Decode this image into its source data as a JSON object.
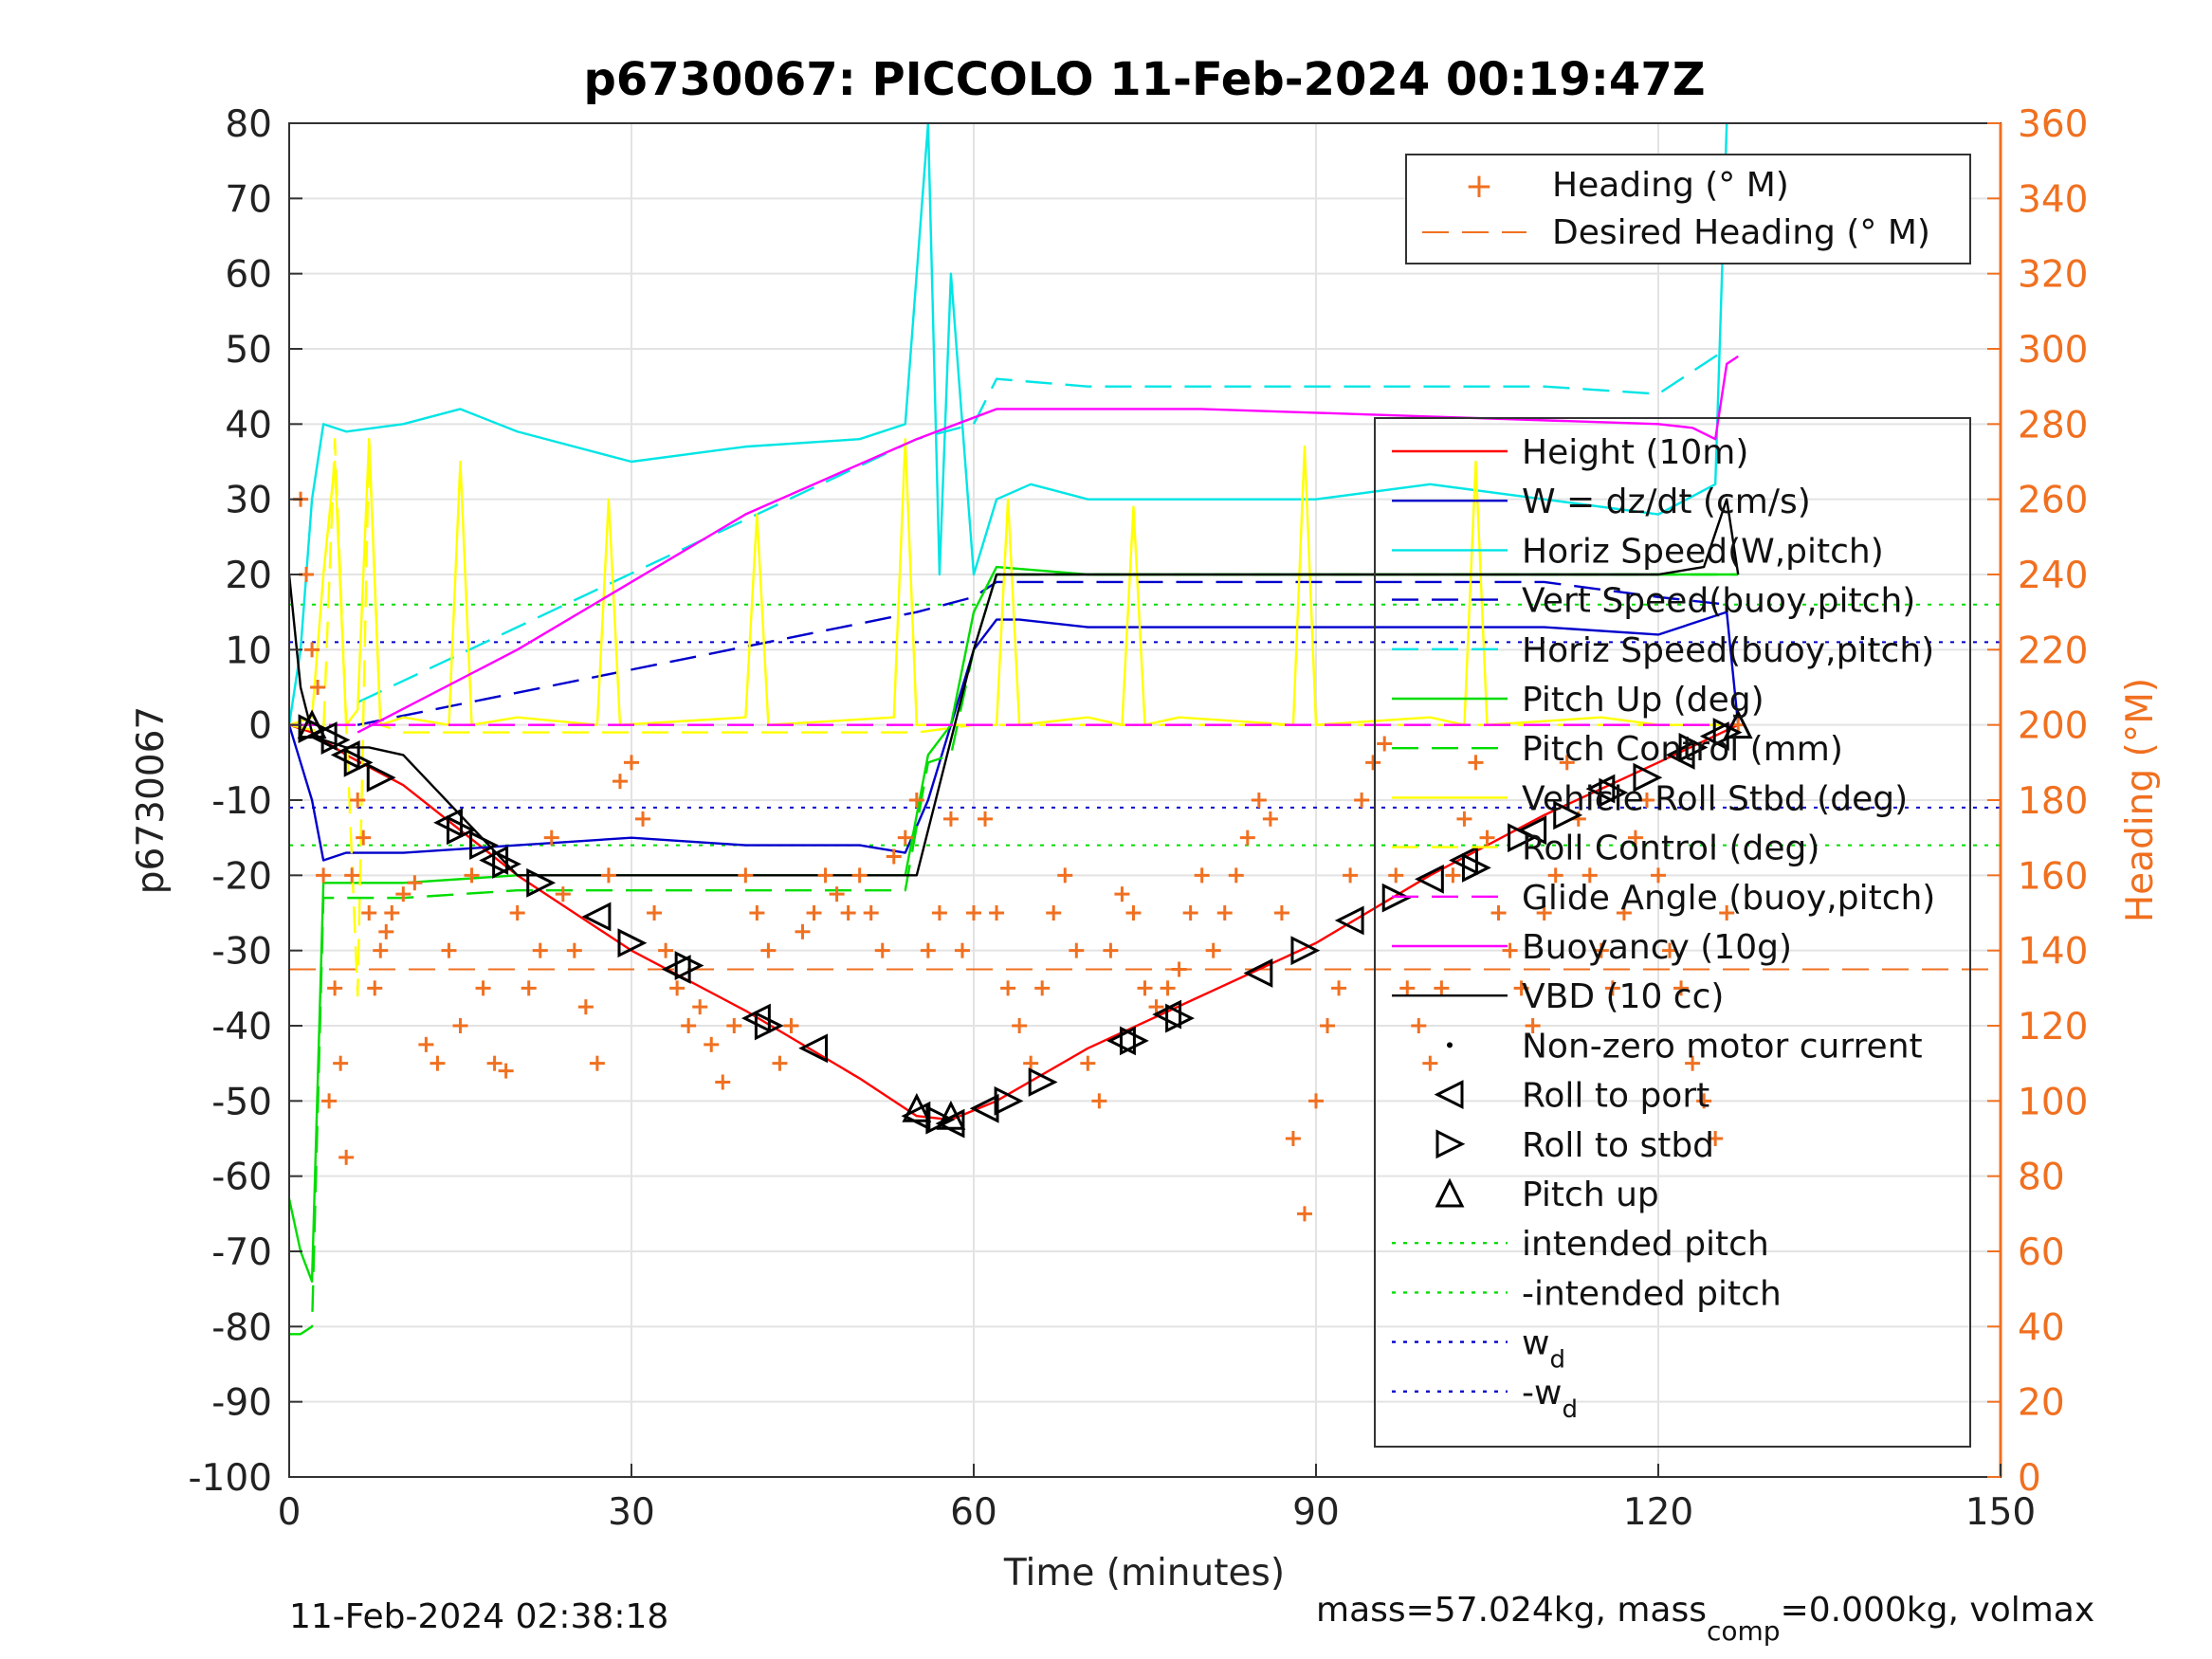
{
  "chart_data": {
    "type": "line",
    "title": "p6730067: PICCOLO 11-Feb-2024 00:19:47Z",
    "xlabel": "Time (minutes)",
    "ylabel": "p6730067",
    "y2label": "Heading (°M)",
    "xlim": [
      0,
      150
    ],
    "ylim": [
      -100,
      80
    ],
    "y2lim": [
      0,
      360
    ],
    "xticks": [
      "0",
      "30",
      "60",
      "90",
      "120",
      "150"
    ],
    "yticks": [
      "80",
      "70",
      "60",
      "50",
      "40",
      "30",
      "20",
      "10",
      "0",
      "-10",
      "-20",
      "-30",
      "-40",
      "-50",
      "-60",
      "-70",
      "-80",
      "-90",
      "-100"
    ],
    "y2ticks": [
      "360",
      "340",
      "320",
      "300",
      "280",
      "260",
      "240",
      "220",
      "200",
      "180",
      "160",
      "140",
      "120",
      "100",
      "80",
      "60",
      "40",
      "20",
      "0"
    ],
    "grid": true,
    "legend_heading": {
      "placement": "top-right",
      "entries": [
        "Heading (° M)",
        "Desired Heading (° M)"
      ]
    },
    "legend_main": {
      "placement": "right",
      "entries": [
        {
          "label": "Height (10m)",
          "color": "#ff0000",
          "style": "solid"
        },
        {
          "label": "W = dz/dt (cm/s)",
          "color": "#0000cc",
          "style": "solid"
        },
        {
          "label": "Horiz Speed(W,pitch)",
          "color": "#00e5e5",
          "style": "solid"
        },
        {
          "label": "Vert Speed(buoy,pitch)",
          "color": "#0000cc",
          "style": "dashed"
        },
        {
          "label": "Horiz Speed(buoy,pitch)",
          "color": "#00e5e5",
          "style": "dashed"
        },
        {
          "label": "Pitch Up (deg)",
          "color": "#00dd00",
          "style": "solid"
        },
        {
          "label": "Pitch Control (mm)",
          "color": "#00dd00",
          "style": "dashed"
        },
        {
          "label": "Vehicle Roll Stbd (deg)",
          "color": "#ffff00",
          "style": "solid"
        },
        {
          "label": "Roll Control (deg)",
          "color": "#ffff00",
          "style": "dashed"
        },
        {
          "label": "Glide Angle (buoy,pitch)",
          "color": "#ff00ff",
          "style": "dashed"
        },
        {
          "label": "Buoyancy (10g)",
          "color": "#ff00ff",
          "style": "solid"
        },
        {
          "label": "VBD (10 cc)",
          "color": "#000000",
          "style": "solid"
        },
        {
          "label": "Non-zero motor current",
          "color": "#000000",
          "style": "dot"
        },
        {
          "label": "Roll to port",
          "color": "#000000",
          "style": "triangle-left"
        },
        {
          "label": "Roll to stbd",
          "color": "#000000",
          "style": "triangle-right"
        },
        {
          "label": "Pitch up",
          "color": "#000000",
          "style": "triangle-up"
        },
        {
          "label": "intended pitch",
          "color": "#00dd00",
          "style": "dotted"
        },
        {
          "label": "-intended pitch",
          "color": "#00dd00",
          "style": "dotted"
        },
        {
          "label": "w",
          "sub": "d",
          "color": "#0000cc",
          "style": "dotted"
        },
        {
          "label": "-w",
          "sub": "d",
          "color": "#0000cc",
          "style": "dotted"
        }
      ]
    },
    "colors": {
      "heading": "#f07020",
      "height": "#ff0000",
      "w": "#0000cc",
      "horiz": "#00e5e5",
      "pitch": "#00dd00",
      "roll": "#ffff00",
      "glide": "#ff00ff",
      "vbd": "#000000"
    },
    "series": [
      {
        "name": "Height (10m)",
        "x": [
          0,
          2,
          5,
          10,
          20,
          30,
          40,
          50,
          55,
          58,
          62,
          70,
          80,
          90,
          100,
          110,
          120,
          127
        ],
        "y": [
          0,
          -1,
          -4,
          -8,
          -20,
          -30,
          -38,
          -47,
          -52,
          -52.5,
          -50,
          -43,
          -36,
          -29,
          -20,
          -12,
          -5,
          0
        ]
      },
      {
        "name": "W = dz/dt (cm/s)",
        "x": [
          0,
          1,
          2,
          3,
          5,
          10,
          20,
          30,
          40,
          50,
          54,
          56,
          58,
          60,
          62,
          64,
          70,
          80,
          90,
          100,
          110,
          120,
          126,
          127
        ],
        "y": [
          0,
          -5,
          -10,
          -18,
          -17,
          -17,
          -16,
          -15,
          -16,
          -16,
          -17,
          -10,
          0,
          10,
          14,
          14,
          13,
          13,
          13,
          13,
          13,
          12,
          15,
          0
        ]
      },
      {
        "name": "Horiz Speed(W,pitch)",
        "x": [
          0,
          1,
          2,
          3,
          5,
          10,
          15,
          20,
          30,
          40,
          50,
          54,
          56,
          57,
          58,
          60,
          62,
          65,
          70,
          80,
          90,
          100,
          110,
          120,
          125,
          126
        ],
        "y": [
          0,
          10,
          30,
          40,
          39,
          40,
          42,
          39,
          35,
          37,
          38,
          40,
          80,
          20,
          60,
          20,
          30,
          32,
          30,
          30,
          30,
          32,
          30,
          28,
          32,
          80
        ]
      },
      {
        "name": "Vert Speed(buoy,pitch)",
        "x": [
          6,
          55,
          60,
          62,
          70,
          80,
          90,
          100,
          110,
          120,
          126
        ],
        "y": [
          0,
          15,
          17,
          19,
          19,
          19,
          19,
          19,
          19,
          17,
          16
        ]
      },
      {
        "name": "Horiz Speed(buoy,pitch)",
        "x": [
          6,
          55,
          60,
          62,
          70,
          80,
          90,
          100,
          110,
          120,
          126
        ],
        "y": [
          3,
          38,
          40,
          46,
          45,
          45,
          45,
          45,
          45,
          44,
          50
        ]
      },
      {
        "name": "Pitch Up (deg)",
        "x": [
          0,
          1,
          2,
          3,
          5,
          10,
          20,
          30,
          40,
          50,
          54,
          56,
          58,
          60,
          62,
          70,
          80,
          90,
          100,
          110,
          120,
          126,
          127
        ],
        "y": [
          -63,
          -70,
          -74,
          -21,
          -21,
          -21,
          -20,
          -20,
          -20,
          -20,
          -20,
          -4,
          0,
          15,
          21,
          20,
          20,
          20,
          20,
          20,
          20,
          20,
          20
        ]
      },
      {
        "name": "Pitch Control (mm)",
        "x": [
          0,
          1,
          2,
          3,
          5,
          10,
          20,
          30,
          40,
          50,
          54,
          56,
          58,
          60,
          62,
          70,
          80,
          90,
          100,
          110,
          120,
          127
        ],
        "y": [
          -81,
          -81,
          -80,
          -23,
          -23,
          -23,
          -22,
          -22,
          -22,
          -22,
          -22,
          -5,
          -4,
          10,
          20,
          20,
          20,
          20,
          20,
          20,
          20,
          20
        ]
      },
      {
        "name": "Vehicle Roll Stbd (deg)",
        "x": [
          0,
          2,
          3,
          4,
          5,
          6,
          7,
          8,
          10,
          14,
          15,
          16,
          20,
          27,
          28,
          29,
          40,
          41,
          42,
          53,
          54,
          55,
          60,
          62,
          63,
          64,
          70,
          73,
          74,
          75,
          78,
          88,
          89,
          90,
          100,
          103,
          104,
          105,
          115,
          120,
          125,
          127
        ],
        "y": [
          0,
          1,
          20,
          35,
          0,
          2,
          38,
          0,
          1,
          0,
          35,
          0,
          1,
          0,
          30,
          0,
          1,
          28,
          0,
          1,
          38,
          0,
          0,
          0,
          30,
          0,
          1,
          0,
          29,
          0,
          1,
          0,
          37,
          0,
          1,
          0,
          35,
          0,
          1,
          0,
          0,
          0
        ]
      },
      {
        "name": "Roll Control (deg)",
        "x": [
          0,
          3,
          4,
          5,
          6,
          7,
          8,
          10,
          20,
          30,
          40,
          50,
          55,
          60,
          70,
          80,
          90,
          100,
          110,
          120,
          127
        ],
        "y": [
          0,
          -1,
          38,
          0,
          -36,
          38,
          0,
          -1,
          -1,
          -1,
          -1,
          -1,
          -1,
          0,
          0,
          0,
          0,
          0,
          0,
          0,
          0
        ]
      },
      {
        "name": "Glide Angle (buoy,pitch)",
        "x": [
          0,
          10,
          20,
          30,
          40,
          50,
          55,
          60,
          70,
          80,
          90,
          100,
          110,
          120,
          127
        ],
        "y": [
          0,
          0,
          0,
          0,
          0,
          0,
          0,
          0,
          0,
          0,
          0,
          0,
          0,
          0,
          0
        ]
      },
      {
        "name": "Buoyancy (10g)",
        "x": [
          6,
          20,
          40,
          55,
          62,
          70,
          80,
          90,
          100,
          110,
          120,
          123,
          125,
          126,
          127
        ],
        "y": [
          -1,
          10,
          28,
          38,
          42,
          42,
          42,
          41.5,
          41,
          40.5,
          40,
          39.5,
          38,
          48,
          49
        ]
      },
      {
        "name": "VBD (10 cc)",
        "x": [
          0,
          1,
          2,
          3,
          5,
          7,
          10,
          20,
          30,
          40,
          50,
          55,
          57,
          60,
          62,
          70,
          80,
          90,
          100,
          110,
          120,
          124,
          126,
          127
        ],
        "y": [
          20,
          5,
          -1,
          -2,
          -3,
          -3,
          -4,
          -20,
          -20,
          -20,
          -20,
          -20,
          -8,
          10,
          20,
          20,
          20,
          20,
          20,
          20,
          20,
          21,
          30,
          20
        ]
      }
    ],
    "heading_points": {
      "x": [
        1,
        1.5,
        2,
        2.5,
        3,
        3.5,
        4,
        4.5,
        5,
        5.5,
        6,
        6.5,
        7,
        7.5,
        8,
        8.5,
        9,
        10,
        11,
        12,
        13,
        14,
        15,
        16,
        17,
        18,
        19,
        20,
        21,
        22,
        23,
        24,
        25,
        26,
        27,
        28,
        29,
        30,
        31,
        32,
        33,
        34,
        35,
        36,
        37,
        38,
        39,
        40,
        41,
        42,
        43,
        44,
        45,
        46,
        47,
        48,
        49,
        50,
        51,
        52,
        53,
        54,
        55,
        56,
        57,
        58,
        59,
        60,
        61,
        62,
        63,
        64,
        65,
        66,
        67,
        68,
        69,
        70,
        71,
        72,
        73,
        74,
        75,
        76,
        77,
        78,
        79,
        80,
        81,
        82,
        83,
        84,
        85,
        86,
        87,
        88,
        89,
        90,
        91,
        92,
        93,
        94,
        95,
        96,
        97,
        98,
        99,
        100,
        101,
        102,
        103,
        104,
        105,
        106,
        107,
        108,
        109,
        110,
        111,
        112,
        113,
        114,
        115,
        116,
        117,
        118,
        119,
        120,
        121,
        122,
        123,
        124,
        125,
        126,
        127
      ],
      "y": [
        260,
        240,
        220,
        210,
        160,
        100,
        130,
        110,
        85,
        160,
        180,
        170,
        150,
        130,
        140,
        145,
        150,
        155,
        158,
        115,
        110,
        140,
        120,
        160,
        130,
        110,
        108,
        150,
        130,
        140,
        170,
        155,
        140,
        125,
        110,
        160,
        185,
        190,
        175,
        150,
        140,
        130,
        120,
        125,
        115,
        105,
        120,
        160,
        150,
        140,
        110,
        120,
        145,
        150,
        160,
        155,
        150,
        160,
        150,
        140,
        165,
        170,
        180,
        140,
        150,
        175,
        140,
        150,
        175,
        150,
        130,
        120,
        110,
        130,
        150,
        160,
        140,
        110,
        100,
        140,
        155,
        150,
        130,
        125,
        130,
        135,
        150,
        160,
        140,
        150,
        160,
        170,
        180,
        175,
        150,
        90,
        70,
        100,
        120,
        130,
        160,
        180,
        190,
        195,
        160,
        130,
        120,
        110,
        130,
        160,
        175,
        190,
        170,
        150,
        140,
        130,
        120,
        150,
        160,
        190,
        175,
        160,
        140,
        130,
        150,
        170,
        180,
        160,
        140,
        130,
        110,
        100,
        90,
        150,
        200
      ]
    },
    "desired_heading": {
      "x": [
        0,
        150
      ],
      "y": [
        135,
        135
      ]
    },
    "intended_pitch": 16,
    "w_d": 11,
    "markers": {
      "roll_to_port": [
        [
          3,
          -1.5
        ],
        [
          5,
          -4
        ],
        [
          14,
          -13
        ],
        [
          18,
          -18
        ],
        [
          27,
          -25.5
        ],
        [
          34,
          -32.5
        ],
        [
          41,
          -39
        ],
        [
          46,
          -43
        ],
        [
          55,
          -52
        ],
        [
          58,
          -53
        ],
        [
          61,
          -51
        ],
        [
          73,
          -42
        ],
        [
          77,
          -38.5
        ],
        [
          85,
          -33
        ],
        [
          93,
          -26
        ],
        [
          100,
          -20.5
        ],
        [
          103,
          -18
        ],
        [
          109,
          -14
        ],
        [
          115,
          -8.5
        ],
        [
          122,
          -4
        ],
        [
          125,
          -1.5
        ]
      ],
      "roll_to_stbd": [
        [
          2,
          -0.5
        ],
        [
          4,
          -2
        ],
        [
          6,
          -5
        ],
        [
          8,
          -7
        ],
        [
          15,
          -14
        ],
        [
          17,
          -16
        ],
        [
          19,
          -18.5
        ],
        [
          22,
          -21
        ],
        [
          30,
          -29
        ],
        [
          35,
          -32
        ],
        [
          42,
          -40
        ],
        [
          57,
          -52.5
        ],
        [
          63,
          -50
        ],
        [
          66,
          -47.5
        ],
        [
          74,
          -42
        ],
        [
          78,
          -39
        ],
        [
          89,
          -30
        ],
        [
          97,
          -23
        ],
        [
          104,
          -19
        ],
        [
          108,
          -15
        ],
        [
          112,
          -12
        ],
        [
          116,
          -9
        ],
        [
          119,
          -7
        ],
        [
          123,
          -3
        ],
        [
          126,
          -1
        ]
      ],
      "pitch_up": [
        [
          2,
          0
        ],
        [
          55,
          -51
        ],
        [
          58,
          -52
        ],
        [
          127,
          0
        ]
      ]
    }
  },
  "footer": {
    "timestamp": "11-Feb-2024 02:38:18",
    "mass_text_a": "mass=57.024kg, mass",
    "mass_sub": "comp",
    "mass_text_b": "=0.000kg, volmax"
  }
}
